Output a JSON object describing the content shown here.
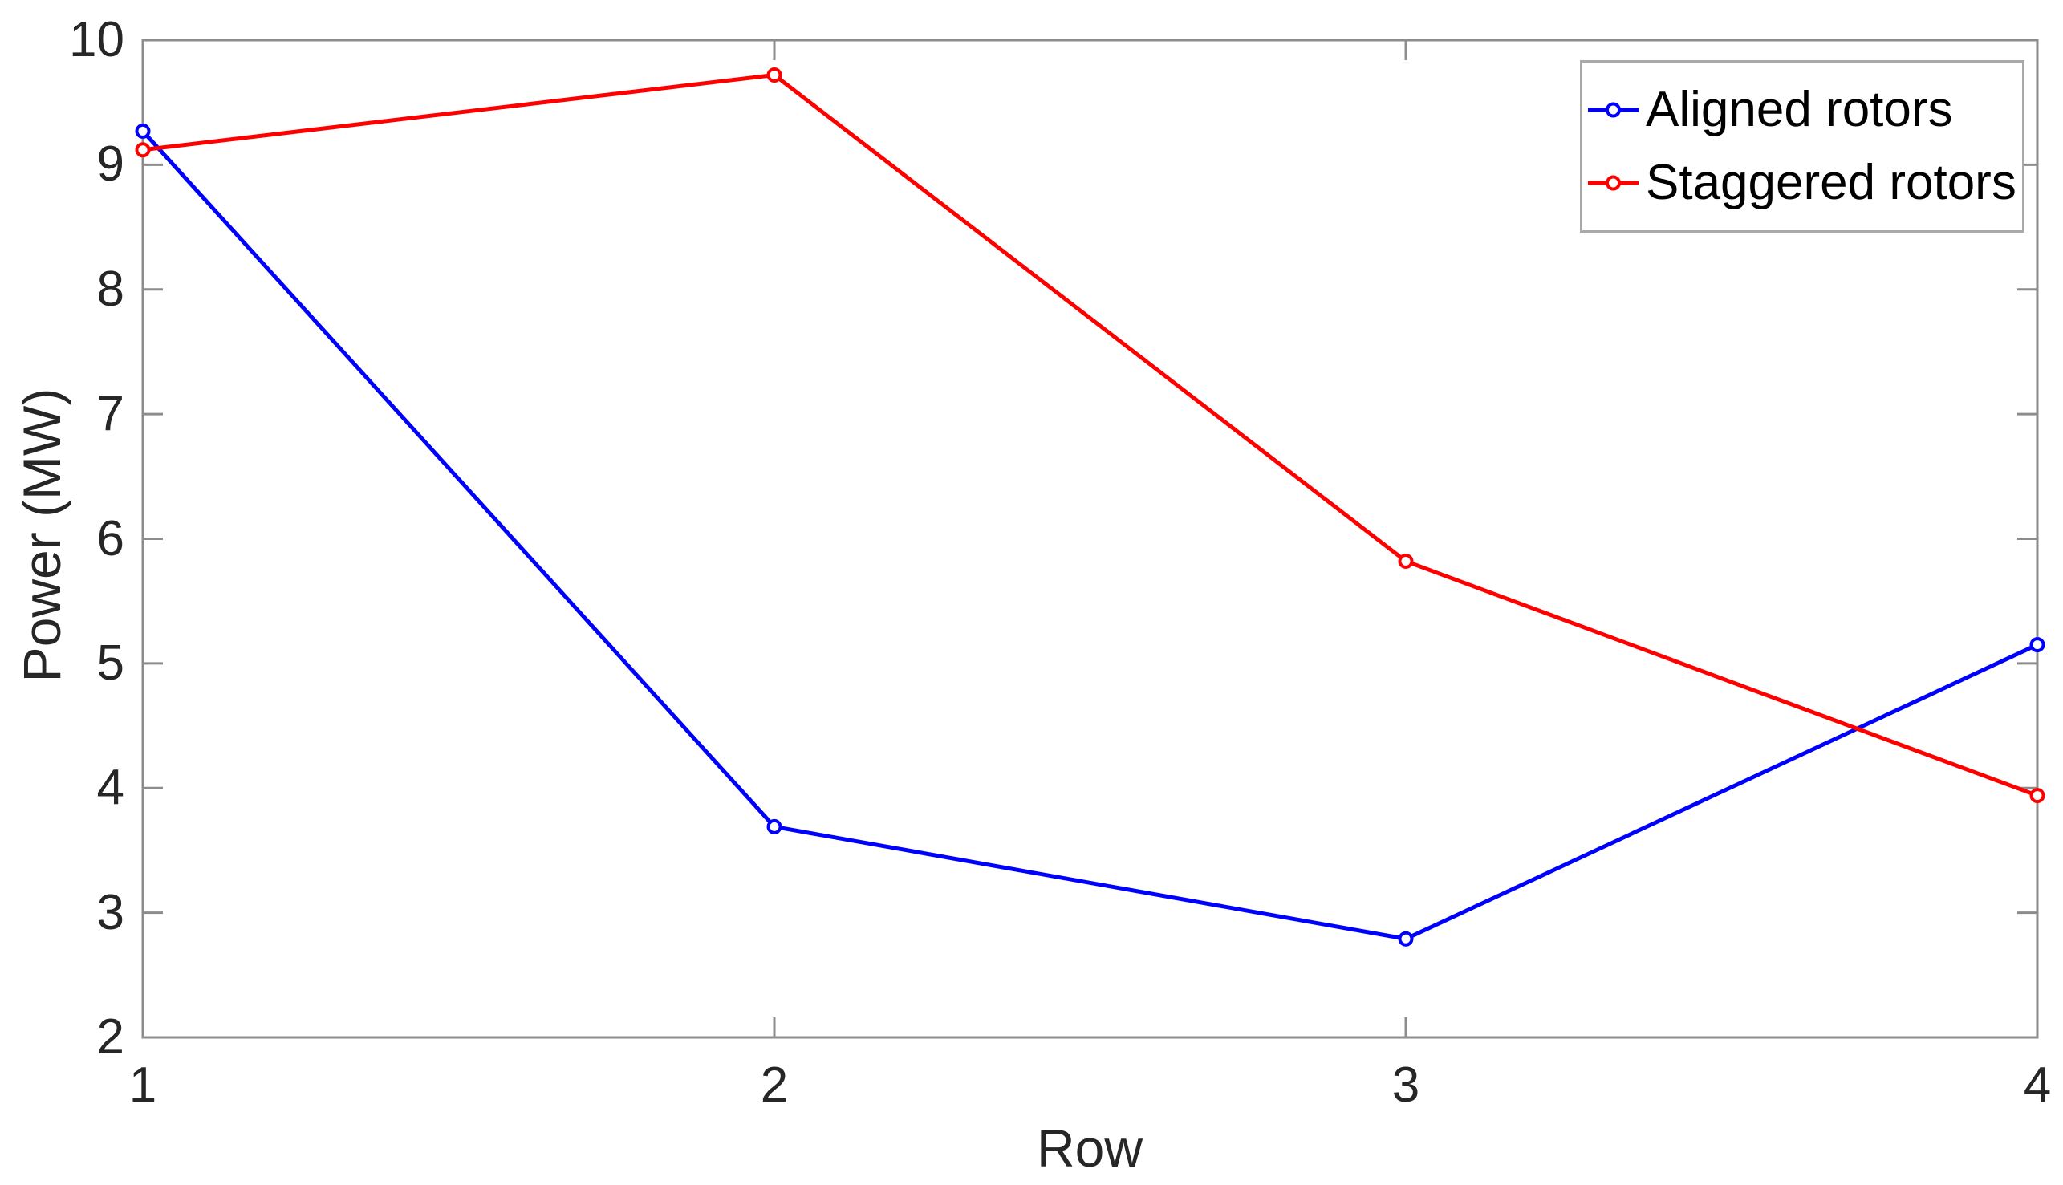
{
  "chart_data": {
    "type": "line",
    "title": "",
    "xlabel": "Row",
    "ylabel": "Power (MW)",
    "x": [
      1,
      2,
      3,
      4
    ],
    "xlim": [
      1,
      4
    ],
    "ylim": [
      2,
      10
    ],
    "xticks": [
      "1",
      "2",
      "3",
      "4"
    ],
    "yticks": [
      "2",
      "3",
      "4",
      "5",
      "6",
      "7",
      "8",
      "9",
      "10"
    ],
    "grid": false,
    "legend_position": "top-right-inside",
    "axis_color": "#8c8c8c",
    "tick_label_color": "#262626",
    "background_color": "#ffffff",
    "series": [
      {
        "name": "Aligned rotors",
        "color": "#0000ff",
        "marker": "open-circle",
        "values": [
          9.27,
          3.69,
          2.79,
          5.15
        ]
      },
      {
        "name": "Staggered rotors",
        "color": "#ff0000",
        "marker": "open-circle",
        "values": [
          9.12,
          9.72,
          5.82,
          3.94
        ]
      }
    ]
  }
}
